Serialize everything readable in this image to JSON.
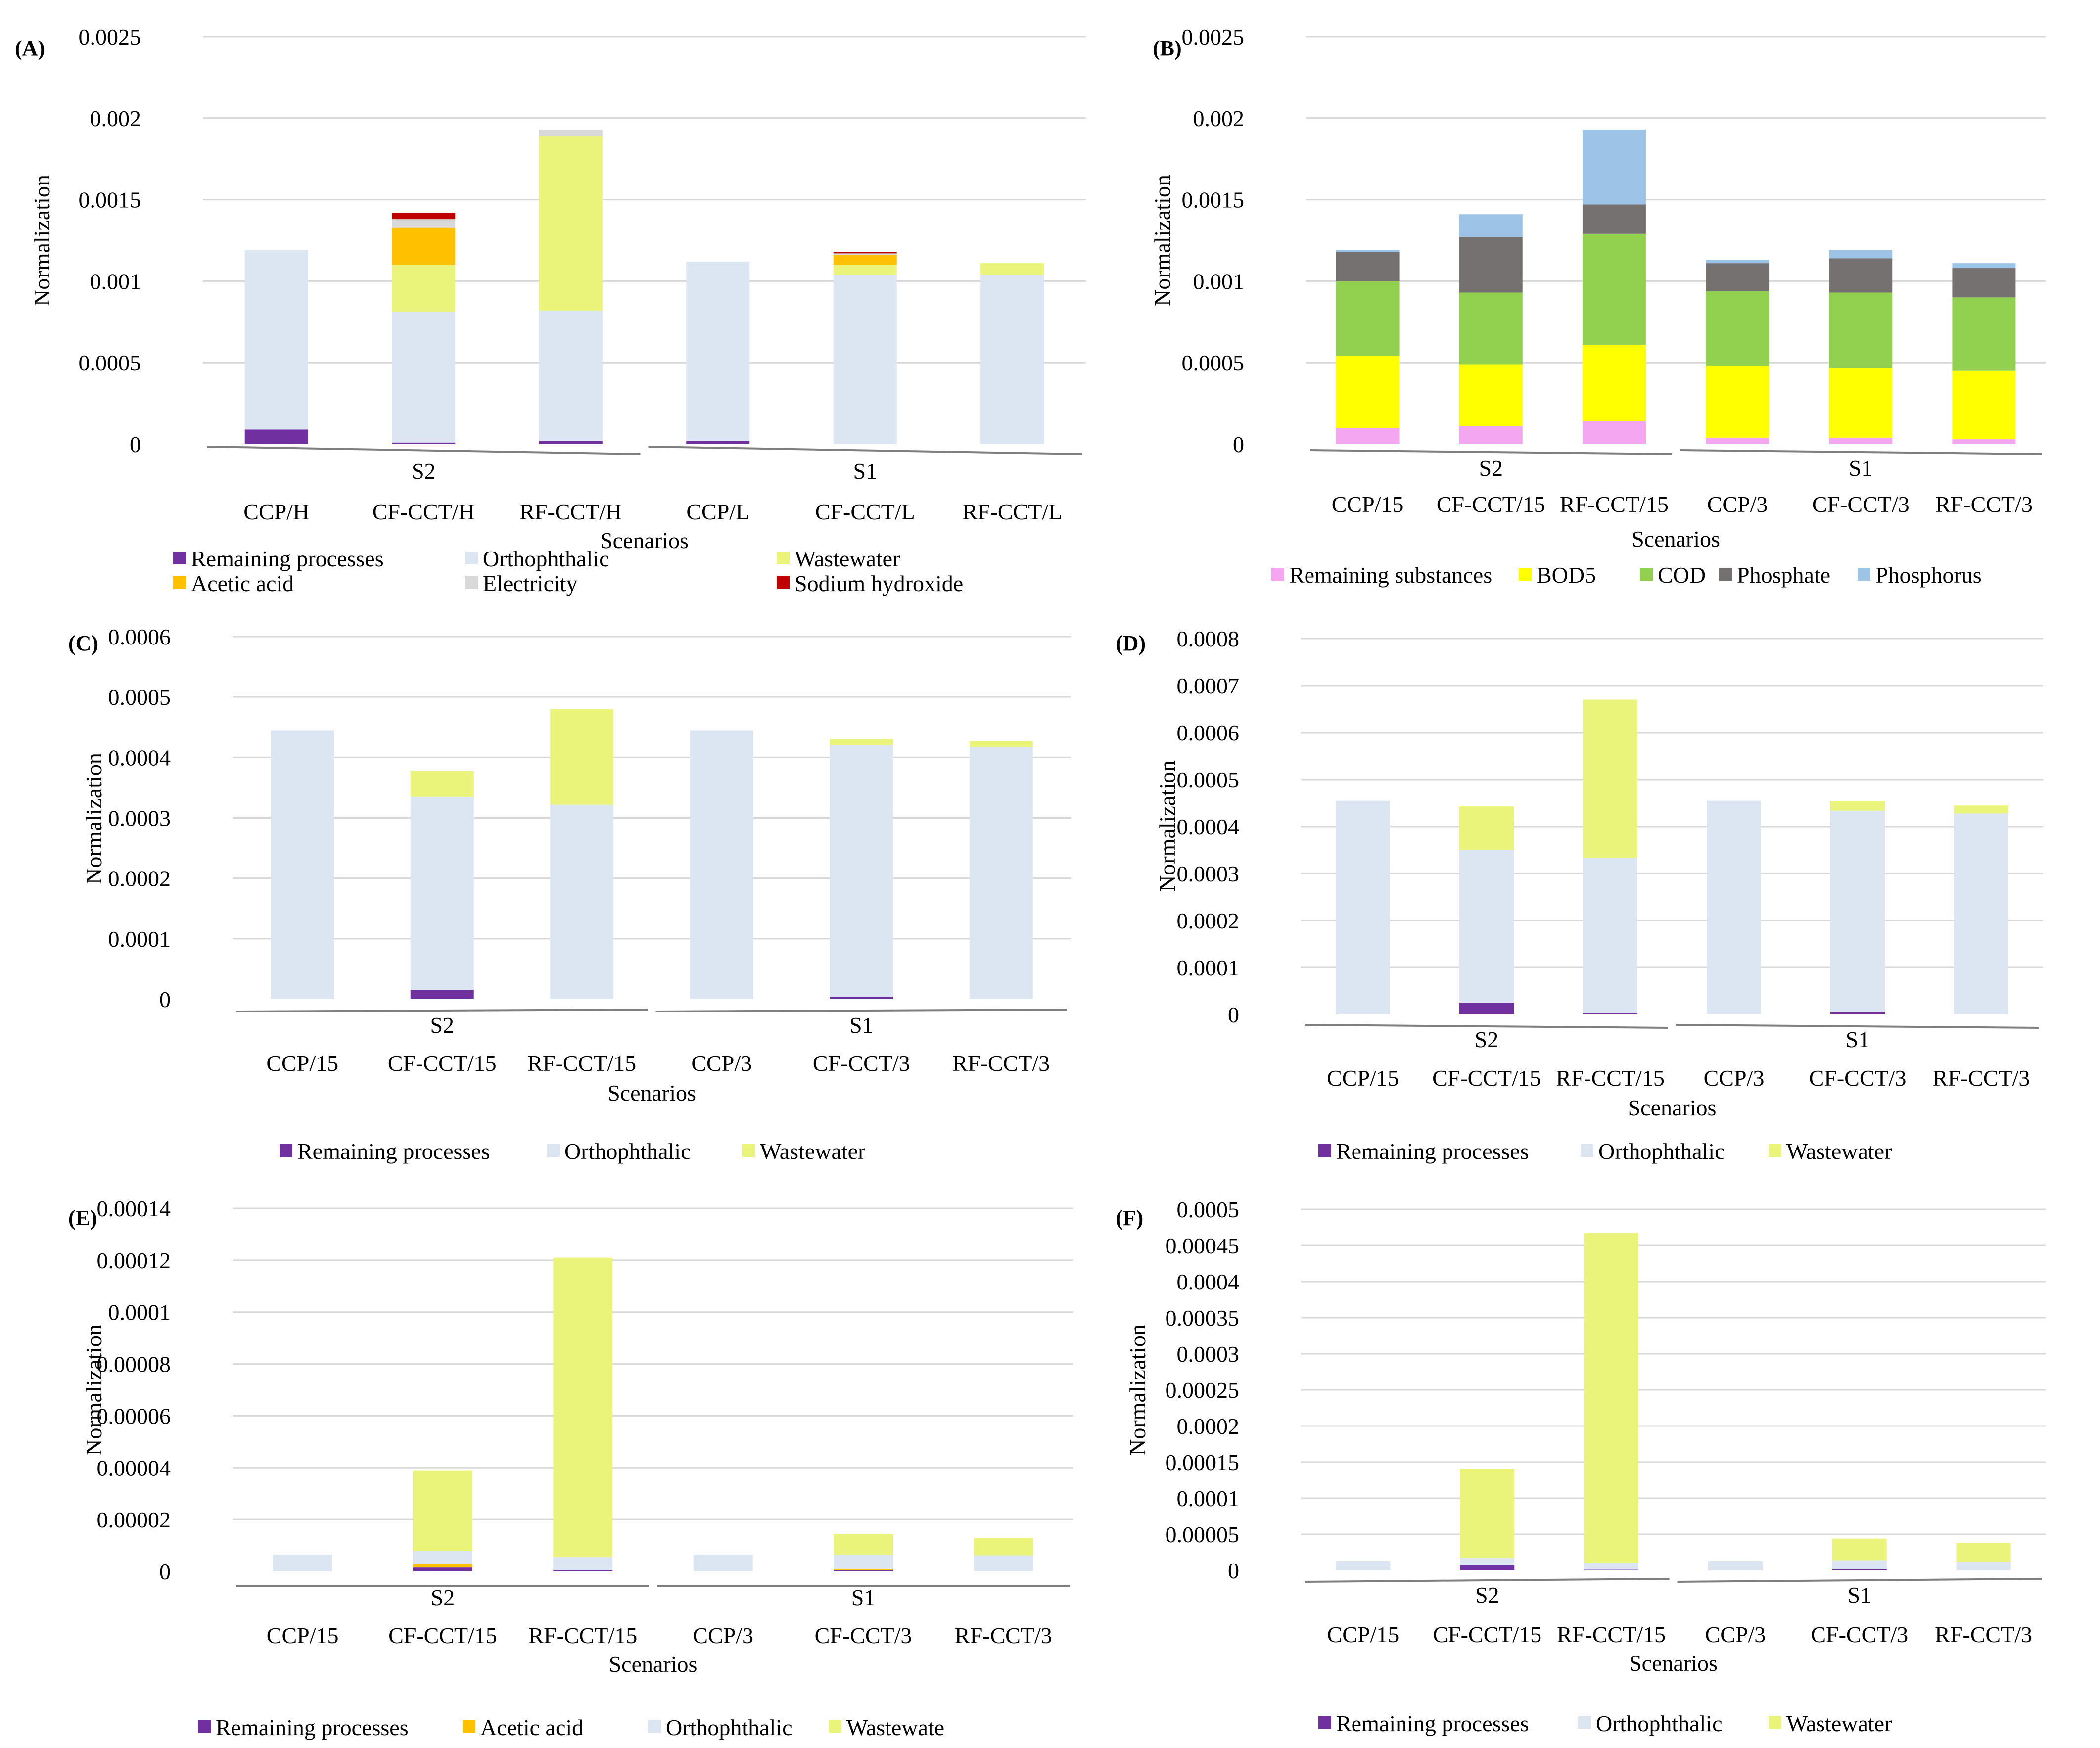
{
  "chart_data": [
    {
      "panel": "(A)",
      "type": "bar",
      "stacked": true,
      "ylabel": "Normalization",
      "xlabel": "Scenarios",
      "ylim": [
        0,
        0.0025
      ],
      "yticks": [
        "0",
        "0.0005",
        "0.001",
        "0.0015",
        "0.002",
        "0.0025"
      ],
      "categories": [
        "CCP/H",
        "CF-CCT/H",
        "RF-CCT/H",
        "CCP/L",
        "CF-CCT/L",
        "RF-CCT/L"
      ],
      "groups": [
        {
          "label": "S2",
          "from": 0,
          "to": 2
        },
        {
          "label": "S1",
          "from": 3,
          "to": 5
        }
      ],
      "series": [
        {
          "name": "Remaining processes",
          "color": "#7030A0",
          "values": [
            9e-05,
            1e-05,
            2e-05,
            2e-05,
            0.0,
            0.0
          ]
        },
        {
          "name": "Orthophthalic",
          "color": "#DCE6F2",
          "values": [
            0.0011,
            0.0008,
            0.0008,
            0.0011,
            0.00104,
            0.00104
          ]
        },
        {
          "name": "Wastewater",
          "color": "#EBF47A",
          "values": [
            0.0,
            0.00029,
            0.00107,
            0.0,
            6e-05,
            7e-05
          ]
        },
        {
          "name": "Acetic acid",
          "color": "#FFC000",
          "values": [
            0.0,
            0.00023,
            0.0,
            0.0,
            6e-05,
            0.0
          ]
        },
        {
          "name": "Electricity",
          "color": "#D9D9D9",
          "values": [
            0.0,
            5e-05,
            4e-05,
            0.0,
            1e-05,
            0.0
          ]
        },
        {
          "name": "Sodium hydroxide",
          "color": "#C00000",
          "values": [
            0.0,
            4e-05,
            0.0,
            0.0,
            1e-05,
            0.0
          ]
        }
      ]
    },
    {
      "panel": "(B)",
      "type": "bar",
      "stacked": true,
      "ylabel": "Normalization",
      "xlabel": "Scenarios",
      "ylim": [
        0,
        0.0025
      ],
      "yticks": [
        "0",
        "0.0005",
        "0.001",
        "0.0015",
        "0.002",
        "0.0025"
      ],
      "categories": [
        "CCP/15",
        "CF-CCT/15",
        "RF-CCT/15",
        "CCP/3",
        "CF-CCT/3",
        "RF-CCT/3"
      ],
      "groups": [
        {
          "label": "S2",
          "from": 0,
          "to": 2
        },
        {
          "label": "S1",
          "from": 3,
          "to": 5
        }
      ],
      "series": [
        {
          "name": "Remaining substances",
          "color": "#F4A6F0",
          "values": [
            0.0001,
            0.00011,
            0.00014,
            4e-05,
            4e-05,
            3e-05
          ]
        },
        {
          "name": "BOD5",
          "color": "#FFFF00",
          "values": [
            0.00044,
            0.00038,
            0.00047,
            0.00044,
            0.00043,
            0.00042
          ]
        },
        {
          "name": "COD",
          "color": "#92D050",
          "values": [
            0.00046,
            0.00044,
            0.00068,
            0.00046,
            0.00046,
            0.00045
          ]
        },
        {
          "name": "Phosphate",
          "color": "#767171",
          "values": [
            0.00018,
            0.00034,
            0.00018,
            0.00017,
            0.00021,
            0.00018
          ]
        },
        {
          "name": "Phosphorus",
          "color": "#9DC3E6",
          "values": [
            1e-05,
            0.00014,
            0.00046,
            2e-05,
            5e-05,
            3e-05
          ]
        }
      ]
    },
    {
      "panel": "(C)",
      "type": "bar",
      "stacked": true,
      "ylabel": "Normalization",
      "xlabel": "Scenarios",
      "ylim": [
        0,
        0.0006
      ],
      "yticks": [
        "0",
        "0.0001",
        "0.0002",
        "0.0003",
        "0.0004",
        "0.0005",
        "0.0006"
      ],
      "categories": [
        "CCP/15",
        "CF-CCT/15",
        "RF-CCT/15",
        "CCP/3",
        "CF-CCT/3",
        "RF-CCT/3"
      ],
      "groups": [
        {
          "label": "S2",
          "from": 0,
          "to": 2
        },
        {
          "label": "S1",
          "from": 3,
          "to": 5
        }
      ],
      "series": [
        {
          "name": "Remaining processes",
          "color": "#7030A0",
          "values": [
            0.0,
            1.5e-05,
            0.0,
            0.0,
            4e-06,
            0.0
          ]
        },
        {
          "name": "Orthophthalic",
          "color": "#DCE6F2",
          "values": [
            0.000445,
            0.00032,
            0.000322,
            0.000445,
            0.000416,
            0.000417
          ]
        },
        {
          "name": "Wastewater",
          "color": "#EBF47A",
          "values": [
            0.0,
            4.3e-05,
            0.000158,
            0.0,
            1e-05,
            1e-05
          ]
        }
      ]
    },
    {
      "panel": "(D)",
      "type": "bar",
      "stacked": true,
      "ylabel": "Normalization",
      "xlabel": "Scenarios",
      "ylim": [
        0,
        0.0008
      ],
      "yticks": [
        "0",
        "0.0001",
        "0.0002",
        "0.0003",
        "0.0004",
        "0.0005",
        "0.0006",
        "0.0007",
        "0.0008"
      ],
      "categories": [
        "CCP/15",
        "CF-CCT/15",
        "RF-CCT/15",
        "CCP/3",
        "CF-CCT/3",
        "RF-CCT/3"
      ],
      "groups": [
        {
          "label": "S2",
          "from": 0,
          "to": 2
        },
        {
          "label": "S1",
          "from": 3,
          "to": 5
        }
      ],
      "series": [
        {
          "name": "Remaining processes",
          "color": "#7030A0",
          "values": [
            0.0,
            2.5e-05,
            3e-06,
            0.0,
            6e-06,
            0.0
          ]
        },
        {
          "name": "Orthophthalic",
          "color": "#DCE6F2",
          "values": [
            0.000455,
            0.000325,
            0.00033,
            0.000455,
            0.000428,
            0.000428
          ]
        },
        {
          "name": "Wastewater",
          "color": "#EBF47A",
          "values": [
            0.0,
            9.3e-05,
            0.000337,
            0.0,
            2e-05,
            1.7e-05
          ]
        }
      ]
    },
    {
      "panel": "(E)",
      "type": "bar",
      "stacked": true,
      "ylabel": "Normalization",
      "xlabel": "Scenarios",
      "ylim": [
        0,
        0.00014
      ],
      "yticks": [
        "0",
        "0.00002",
        "0.00004",
        "0.00006",
        "0.00008",
        "0.0001",
        "0.00012",
        "0.00014"
      ],
      "categories": [
        "CCP/15",
        "CF-CCT/15",
        "RF-CCT/15",
        "CCP/3",
        "CF-CCT/3",
        "RF-CCT/3"
      ],
      "groups": [
        {
          "label": "S2",
          "from": 0,
          "to": 2
        },
        {
          "label": "S1",
          "from": 3,
          "to": 5
        }
      ],
      "series": [
        {
          "name": "Remaining processes",
          "color": "#7030A0",
          "values": [
            0.0,
            1.5e-06,
            5e-07,
            0.0,
            5e-07,
            0.0
          ]
        },
        {
          "name": "Acetic acid",
          "color": "#FFC000",
          "values": [
            0.0,
            1.5e-06,
            0.0,
            0.0,
            5e-07,
            0.0
          ]
        },
        {
          "name": "Orthophthalic",
          "color": "#DCE6F2",
          "values": [
            6.5e-06,
            5e-06,
            5e-06,
            6.5e-06,
            5.5e-06,
            6.2e-06
          ]
        },
        {
          "name": "Wastewate",
          "color": "#EBF47A",
          "values": [
            0.0,
            3.1e-05,
            0.0001155,
            0.0,
            7.8e-06,
            6.8e-06
          ]
        }
      ]
    },
    {
      "panel": "(F)",
      "type": "bar",
      "stacked": true,
      "ylabel": "Normalization",
      "xlabel": "Scenarios",
      "ylim": [
        0,
        0.0005
      ],
      "yticks": [
        "0",
        "0.00005",
        "0.0001",
        "0.00015",
        "0.0002",
        "0.00025",
        "0.0003",
        "0.00035",
        "0.0004",
        "0.00045",
        "0.0005"
      ],
      "categories": [
        "CCP/15",
        "CF-CCT/15",
        "RF-CCT/15",
        "CCP/3",
        "CF-CCT/3",
        "RF-CCT/3"
      ],
      "groups": [
        {
          "label": "S2",
          "from": 0,
          "to": 2
        },
        {
          "label": "S1",
          "from": 3,
          "to": 5
        }
      ],
      "series": [
        {
          "name": "Remaining processes",
          "color": "#7030A0",
          "values": [
            0.0,
            7e-06,
            1e-06,
            0.0,
            2e-06,
            0.0
          ]
        },
        {
          "name": "Orthophthalic",
          "color": "#DCE6F2",
          "values": [
            1.3e-05,
            1e-05,
            1e-05,
            1.3e-05,
            1.2e-05,
            1.2e-05
          ]
        },
        {
          "name": "Wastewater",
          "color": "#EBF47A",
          "values": [
            0.0,
            0.000124,
            0.000456,
            0.0,
            3e-05,
            2.6e-05
          ]
        }
      ]
    }
  ]
}
